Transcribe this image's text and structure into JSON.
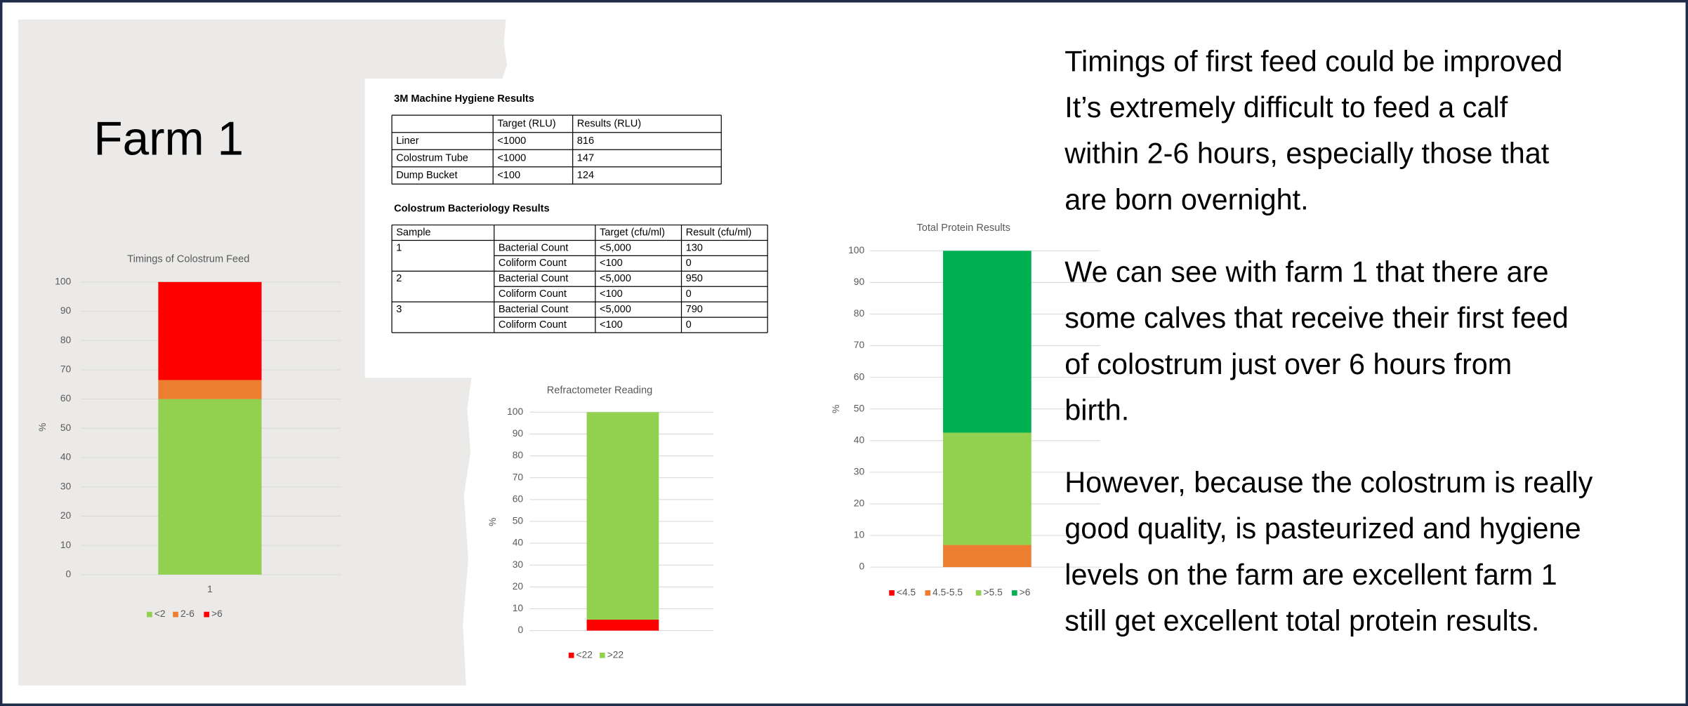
{
  "title": "Farm 1",
  "hygiene": {
    "title": "3M Machine Hygiene Results",
    "header": [
      "Target (RLU)",
      "Results (RLU)"
    ],
    "rows": [
      [
        "Liner",
        "<1000",
        "816"
      ],
      [
        "Colostrum Tube",
        "<1000",
        "147"
      ],
      [
        "Dump Bucket",
        "<100",
        "124"
      ]
    ]
  },
  "bacteriology": {
    "title": "Colostrum Bacteriology Results",
    "header": [
      "Sample",
      "Target (cfu/ml)",
      "Result (cfu/ml)"
    ],
    "samples": [
      {
        "sample": "1",
        "rows": [
          [
            "Bacterial Count",
            "<5,000",
            "130"
          ],
          [
            "Coliform Count",
            "<100",
            "0"
          ]
        ]
      },
      {
        "sample": "2",
        "rows": [
          [
            "Bacterial Count",
            "<5,000",
            "950"
          ],
          [
            "Coliform Count",
            "<100",
            "0"
          ]
        ]
      },
      {
        "sample": "3",
        "rows": [
          [
            "Bacterial Count",
            "<5,000",
            "790"
          ],
          [
            "Coliform Count",
            "<100",
            "0"
          ]
        ]
      }
    ]
  },
  "paragraphs": [
    [
      "Timings of first feed could be improved",
      "It’s extremely difficult to feed a calf",
      "within 2-6 hours, especially those that",
      "are born overnight."
    ],
    [
      "We can see with farm 1 that there are",
      "some calves that receive their first feed",
      "of colostrum just over 6 hours from",
      "birth."
    ],
    [
      "However, because the colostrum is really",
      "good quality, is pasteurized and hygiene",
      "levels on the farm are excellent farm 1",
      "still get excellent total protein results."
    ]
  ],
  "chart_data": [
    {
      "type": "bar",
      "stacked": true,
      "title": "Timings of Colostrum Feed",
      "ylabel": "%",
      "categories": [
        "1"
      ],
      "series": [
        {
          "name": "<2",
          "color": "#92d050",
          "values": [
            60
          ]
        },
        {
          "name": "2-6",
          "color": "#ed7d31",
          "values": [
            6.5
          ]
        },
        {
          "name": ">6",
          "color": "#ff0000",
          "values": [
            33.5
          ]
        }
      ],
      "ylim": [
        0,
        100
      ],
      "yticks": [
        0,
        10,
        20,
        30,
        40,
        50,
        60,
        70,
        80,
        90,
        100
      ],
      "grid": true,
      "legend": "bottom"
    },
    {
      "type": "bar",
      "stacked": true,
      "title": "Refractometer Reading",
      "ylabel": "%",
      "categories": [
        null
      ],
      "series": [
        {
          "name": "<22",
          "color": "#ff0000",
          "values": [
            5
          ]
        },
        {
          "name": ">22",
          "color": "#92d050",
          "values": [
            95
          ]
        }
      ],
      "ylim": [
        0,
        100
      ],
      "yticks": [
        0,
        10,
        20,
        30,
        40,
        50,
        60,
        70,
        80,
        90,
        100
      ],
      "grid": true,
      "legend": "bottom"
    },
    {
      "type": "bar",
      "stacked": true,
      "title": "Total Protein Results",
      "ylabel": "%",
      "categories": [
        null
      ],
      "series": [
        {
          "name": "<4.5",
          "color": "#ff0000",
          "values": [
            0
          ]
        },
        {
          "name": "4.5-5.5",
          "color": "#ed7d31",
          "values": [
            7
          ]
        },
        {
          "name": ">5.5",
          "color": "#92d050",
          "values": [
            35.5
          ]
        },
        {
          "name": ">6",
          "color": "#00b050",
          "values": [
            57.5
          ]
        }
      ],
      "ylim": [
        0,
        100
      ],
      "yticks": [
        0,
        10,
        20,
        30,
        40,
        50,
        60,
        70,
        80,
        90,
        100
      ],
      "grid": true,
      "legend": "bottom"
    }
  ]
}
